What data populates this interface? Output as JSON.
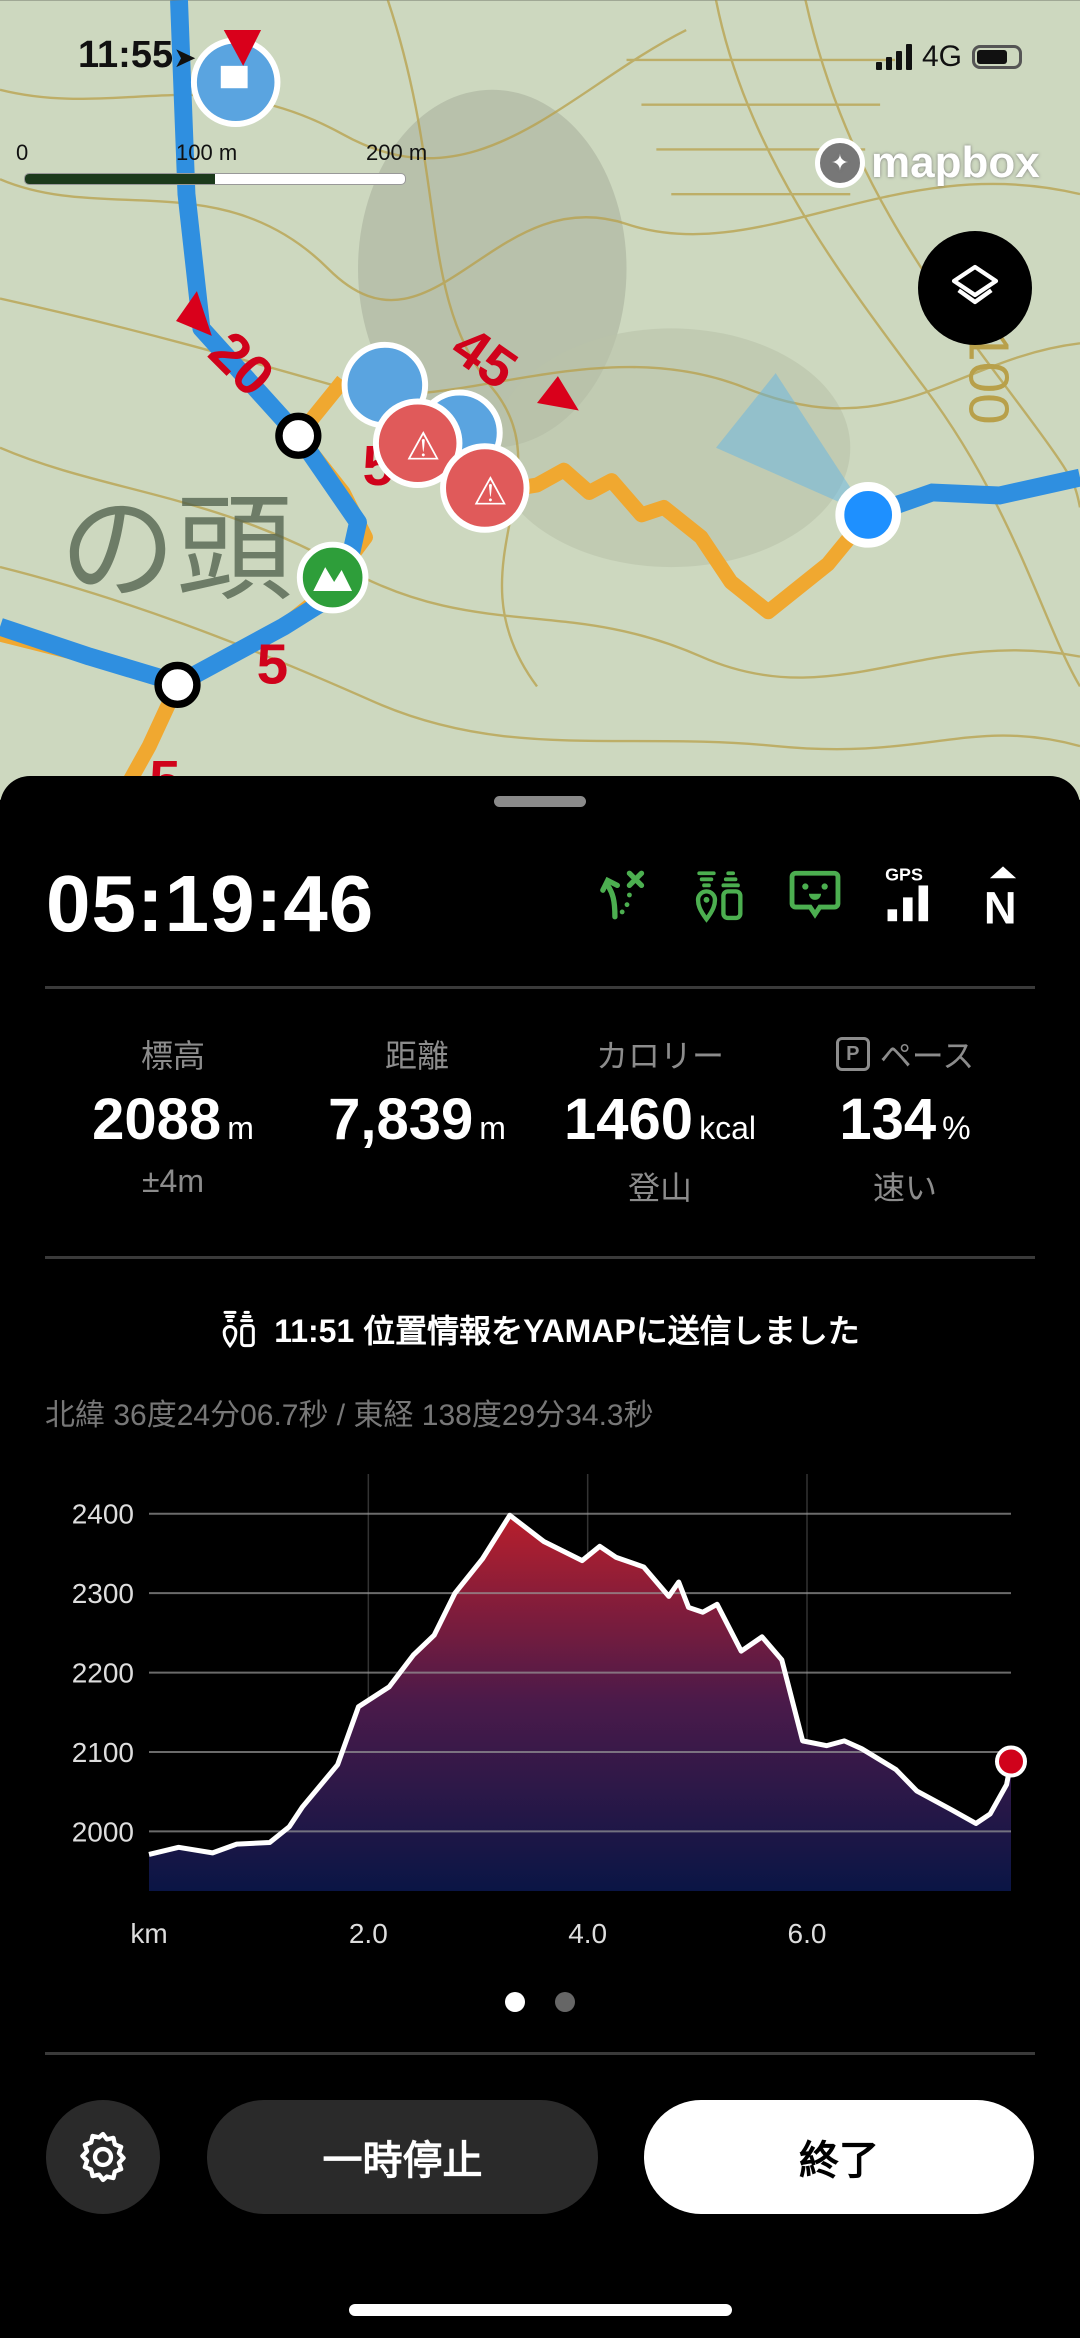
{
  "status_bar": {
    "time": "11:55",
    "network": "4G"
  },
  "map": {
    "scale_labels": [
      "0",
      "100 m",
      "200 m"
    ],
    "attribution": "mapbox",
    "place_label": "の頭",
    "contour_label": "2100",
    "route_numbers": [
      "20",
      "45",
      "5",
      "5",
      "5"
    ],
    "colors": {
      "route_planned": "#2f8fe0",
      "route_track": "#f0a830",
      "current_location": "#1e90ff"
    }
  },
  "panel": {
    "elapsed": "05:19:46",
    "status_icons": [
      "route-off-icon",
      "location-share-icon",
      "chat-face-icon",
      "gps-signal-icon",
      "north-up-icon"
    ],
    "gps_label": "GPS",
    "north_label": "N",
    "stats": [
      {
        "label": "標高",
        "value": "2088",
        "unit": "m",
        "sub": "±4m"
      },
      {
        "label": "距離",
        "value": "7,839",
        "unit": "m",
        "sub": ""
      },
      {
        "label": "カロリー",
        "value": "1460",
        "unit": "kcal",
        "sub": "登山"
      },
      {
        "label": "ペース",
        "badge": "P",
        "value": "134",
        "unit": "%",
        "sub": "速い"
      }
    ],
    "sent_message": "11:51 位置情報をYAMAPに送信しました",
    "coordinates": "北緯 36度24分06.7秒 / 東経 138度29分34.3秒",
    "page_indicator": {
      "count": 2,
      "active": 0
    },
    "buttons": {
      "pause": "一時停止",
      "end": "終了"
    },
    "accent_green": "#4caf50"
  },
  "chart_data": {
    "type": "area",
    "xlabel": "km",
    "x_ticks": [
      "2.0",
      "4.0",
      "6.0"
    ],
    "y_ticks": [
      "2000",
      "2100",
      "2200",
      "2300",
      "2400"
    ],
    "xlim": [
      0,
      7.86
    ],
    "ylim": [
      1925,
      2450
    ],
    "grid": true,
    "x": [
      0,
      0.27,
      0.58,
      0.8,
      1.1,
      1.28,
      1.4,
      1.72,
      1.91,
      2.19,
      2.41,
      2.6,
      2.79,
      3.04,
      3.29,
      3.6,
      3.95,
      4.11,
      4.26,
      4.51,
      4.74,
      4.83,
      4.92,
      5.05,
      5.18,
      5.4,
      5.59,
      5.77,
      5.96,
      6.18,
      6.34,
      6.5,
      6.81,
      7.0,
      7.32,
      7.54,
      7.67,
      7.82,
      7.86
    ],
    "y": [
      1971,
      1980,
      1973,
      1984,
      1986,
      2006,
      2031,
      2084,
      2157,
      2182,
      2222,
      2247,
      2300,
      2343,
      2398,
      2365,
      2341,
      2359,
      2345,
      2333,
      2296,
      2314,
      2282,
      2276,
      2286,
      2227,
      2245,
      2216,
      2114,
      2108,
      2114,
      2104,
      2078,
      2051,
      2027,
      2010,
      2022,
      2059,
      2088
    ],
    "current_point": {
      "x": 7.86,
      "y": 2088
    },
    "colors": {
      "fill_top": "#b81f2c",
      "fill_bottom": "#0a1545",
      "line": "#ffffff",
      "marker": "#d0021b"
    }
  }
}
